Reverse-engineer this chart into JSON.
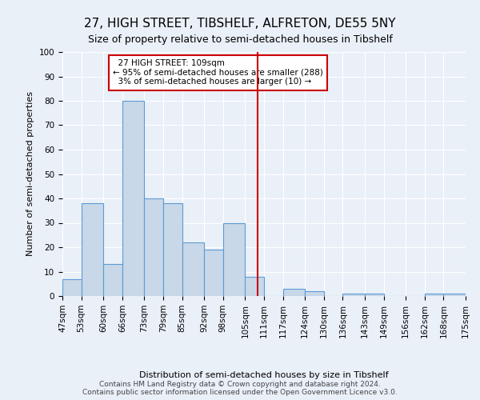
{
  "title": "27, HIGH STREET, TIBSHELF, ALFRETON, DE55 5NY",
  "subtitle": "Size of property relative to semi-detached houses in Tibshelf",
  "xlabel": "Distribution of semi-detached houses by size in Tibshelf",
  "ylabel": "Number of semi-detached properties",
  "bar_values": [
    7,
    38,
    13,
    80,
    40,
    38,
    22,
    19,
    30,
    8,
    0,
    3,
    2,
    0,
    1,
    1,
    0,
    0,
    1,
    1
  ],
  "bin_labels": [
    "47sqm",
    "53sqm",
    "60sqm",
    "66sqm",
    "73sqm",
    "79sqm",
    "85sqm",
    "92sqm",
    "98sqm",
    "105sqm",
    "111sqm",
    "117sqm",
    "124sqm",
    "130sqm",
    "136sqm",
    "143sqm",
    "149sqm",
    "156sqm",
    "162sqm",
    "168sqm",
    "175sqm"
  ],
  "bin_edges": [
    47,
    53,
    60,
    66,
    73,
    79,
    85,
    92,
    98,
    105,
    111,
    117,
    124,
    130,
    136,
    143,
    149,
    156,
    162,
    168,
    175
  ],
  "property_size": 109,
  "property_label": "27 HIGH STREET: 109sqm",
  "pct_smaller": 95,
  "count_smaller": 288,
  "pct_larger": 3,
  "count_larger": 10,
  "vline_x": 109,
  "bar_color": "#c8d8e8",
  "bar_edge_color": "#5b9bd5",
  "vline_color": "#cc0000",
  "annotation_box_color": "#cc0000",
  "bg_color": "#eaf0f8",
  "grid_color": "#ffffff",
  "footer": "Contains HM Land Registry data © Crown copyright and database right 2024.\nContains public sector information licensed under the Open Government Licence v3.0.",
  "ylim": [
    0,
    100
  ],
  "title_fontsize": 11,
  "subtitle_fontsize": 9,
  "axis_label_fontsize": 8,
  "tick_fontsize": 7.5,
  "ann_fontsize": 7.5
}
